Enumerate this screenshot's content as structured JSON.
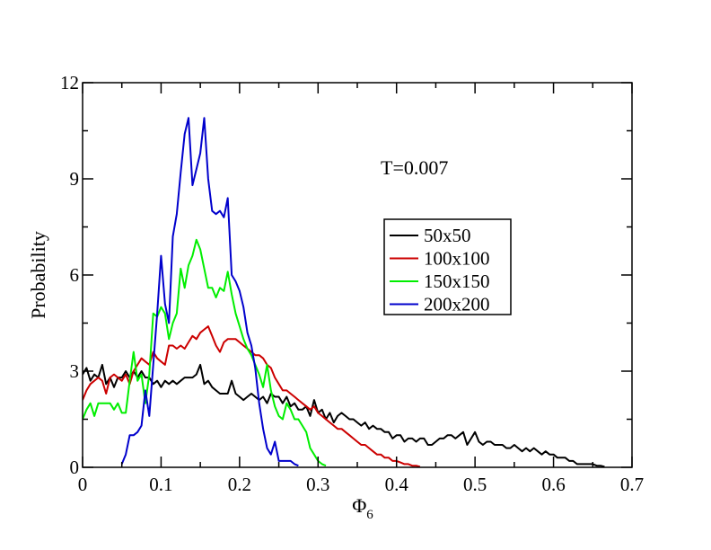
{
  "chart_data": {
    "type": "line",
    "xlabel": "Φ",
    "xlabel_subscript": "6",
    "ylabel": "Probability",
    "annotation": "T=0.007",
    "xlim": [
      0,
      0.7
    ],
    "ylim": [
      0,
      12
    ],
    "x_ticks": [
      0,
      0.1,
      0.2,
      0.3,
      0.4,
      0.5,
      0.6,
      0.7
    ],
    "x_tick_labels": [
      "0",
      "0.1",
      "0.2",
      "0.3",
      "0.4",
      "0.5",
      "0.6",
      "0.7"
    ],
    "y_ticks": [
      0,
      3,
      6,
      9,
      12
    ],
    "y_tick_labels": [
      "0",
      "3",
      "6",
      "9",
      "12"
    ],
    "grid": false,
    "legend_position": "upper-middle-right",
    "series": [
      {
        "name": "50x50",
        "color": "#000000",
        "x": [
          0,
          0.005,
          0.01,
          0.015,
          0.02,
          0.025,
          0.03,
          0.035,
          0.04,
          0.045,
          0.05,
          0.055,
          0.06,
          0.065,
          0.07,
          0.075,
          0.08,
          0.085,
          0.09,
          0.095,
          0.1,
          0.105,
          0.11,
          0.115,
          0.12,
          0.125,
          0.13,
          0.135,
          0.14,
          0.145,
          0.15,
          0.155,
          0.16,
          0.165,
          0.17,
          0.175,
          0.18,
          0.185,
          0.19,
          0.195,
          0.2,
          0.205,
          0.21,
          0.215,
          0.22,
          0.225,
          0.23,
          0.235,
          0.24,
          0.245,
          0.25,
          0.255,
          0.26,
          0.265,
          0.27,
          0.275,
          0.28,
          0.285,
          0.29,
          0.295,
          0.3,
          0.305,
          0.31,
          0.315,
          0.32,
          0.325,
          0.33,
          0.335,
          0.34,
          0.345,
          0.35,
          0.355,
          0.36,
          0.365,
          0.37,
          0.375,
          0.38,
          0.385,
          0.39,
          0.395,
          0.4,
          0.405,
          0.41,
          0.415,
          0.42,
          0.425,
          0.43,
          0.435,
          0.44,
          0.445,
          0.45,
          0.455,
          0.46,
          0.465,
          0.47,
          0.475,
          0.48,
          0.485,
          0.49,
          0.495,
          0.5,
          0.505,
          0.51,
          0.515,
          0.52,
          0.525,
          0.53,
          0.535,
          0.54,
          0.545,
          0.55,
          0.555,
          0.56,
          0.565,
          0.57,
          0.575,
          0.58,
          0.585,
          0.59,
          0.595,
          0.6,
          0.605,
          0.61,
          0.615,
          0.62,
          0.625,
          0.63,
          0.635,
          0.64,
          0.645,
          0.65,
          0.655,
          0.66,
          0.665
        ],
        "values": [
          2.9,
          3.1,
          2.7,
          2.9,
          2.8,
          3.2,
          2.6,
          2.8,
          2.5,
          2.8,
          2.8,
          3.0,
          2.8,
          3.0,
          2.8,
          3.0,
          2.8,
          2.8,
          2.6,
          2.7,
          2.5,
          2.7,
          2.6,
          2.7,
          2.6,
          2.7,
          2.8,
          2.8,
          2.8,
          2.9,
          3.2,
          2.6,
          2.7,
          2.5,
          2.4,
          2.3,
          2.3,
          2.3,
          2.7,
          2.3,
          2.2,
          2.1,
          2.2,
          2.3,
          2.2,
          2.1,
          2.2,
          2.0,
          2.3,
          2.2,
          2.2,
          2.0,
          2.2,
          1.9,
          2.0,
          1.8,
          1.8,
          1.9,
          1.6,
          2.1,
          1.7,
          1.8,
          1.5,
          1.7,
          1.4,
          1.6,
          1.7,
          1.6,
          1.5,
          1.5,
          1.4,
          1.3,
          1.4,
          1.2,
          1.3,
          1.2,
          1.2,
          1.1,
          1.1,
          0.9,
          1.0,
          1.0,
          0.8,
          0.9,
          0.9,
          0.8,
          0.9,
          0.9,
          0.7,
          0.7,
          0.8,
          0.9,
          0.9,
          1.0,
          1.0,
          0.9,
          1.0,
          1.1,
          0.7,
          0.9,
          1.1,
          0.8,
          0.7,
          0.8,
          0.8,
          0.7,
          0.7,
          0.7,
          0.6,
          0.6,
          0.7,
          0.6,
          0.5,
          0.6,
          0.5,
          0.6,
          0.5,
          0.4,
          0.5,
          0.4,
          0.4,
          0.3,
          0.3,
          0.3,
          0.2,
          0.2,
          0.1,
          0.1,
          0.1,
          0.1,
          0.1,
          0.05,
          0.05,
          0.02
        ]
      },
      {
        "name": "100x100",
        "color": "#cc0000",
        "x": [
          0,
          0.005,
          0.01,
          0.015,
          0.02,
          0.025,
          0.03,
          0.035,
          0.04,
          0.045,
          0.05,
          0.055,
          0.06,
          0.065,
          0.07,
          0.075,
          0.08,
          0.085,
          0.09,
          0.095,
          0.1,
          0.105,
          0.11,
          0.115,
          0.12,
          0.125,
          0.13,
          0.135,
          0.14,
          0.145,
          0.15,
          0.155,
          0.16,
          0.165,
          0.17,
          0.175,
          0.18,
          0.185,
          0.19,
          0.195,
          0.2,
          0.205,
          0.21,
          0.215,
          0.22,
          0.225,
          0.23,
          0.235,
          0.24,
          0.245,
          0.25,
          0.255,
          0.26,
          0.265,
          0.27,
          0.275,
          0.28,
          0.285,
          0.29,
          0.295,
          0.3,
          0.305,
          0.31,
          0.315,
          0.32,
          0.325,
          0.33,
          0.335,
          0.34,
          0.345,
          0.35,
          0.355,
          0.36,
          0.365,
          0.37,
          0.375,
          0.38,
          0.385,
          0.39,
          0.395,
          0.4,
          0.405,
          0.41,
          0.415,
          0.42,
          0.425,
          0.43
        ],
        "values": [
          2.1,
          2.4,
          2.6,
          2.7,
          2.8,
          2.7,
          2.3,
          2.8,
          2.9,
          2.8,
          2.7,
          2.9,
          2.6,
          3.0,
          3.2,
          3.4,
          3.3,
          3.2,
          3.6,
          3.4,
          3.3,
          3.2,
          3.8,
          3.8,
          3.7,
          3.8,
          3.7,
          3.9,
          4.1,
          4.0,
          4.2,
          4.3,
          4.4,
          4.1,
          3.8,
          3.6,
          3.9,
          4.0,
          4.0,
          4.0,
          3.9,
          3.8,
          3.7,
          3.6,
          3.5,
          3.5,
          3.4,
          3.2,
          3.1,
          2.8,
          2.6,
          2.4,
          2.4,
          2.3,
          2.2,
          2.1,
          2.0,
          1.9,
          1.8,
          1.9,
          1.7,
          1.6,
          1.5,
          1.4,
          1.3,
          1.2,
          1.2,
          1.1,
          1.0,
          0.9,
          0.8,
          0.7,
          0.7,
          0.6,
          0.5,
          0.4,
          0.4,
          0.3,
          0.3,
          0.2,
          0.2,
          0.15,
          0.1,
          0.1,
          0.05,
          0.05,
          0.02
        ]
      },
      {
        "name": "150x150",
        "color": "#00ee00",
        "x": [
          0,
          0.005,
          0.01,
          0.015,
          0.02,
          0.025,
          0.03,
          0.035,
          0.04,
          0.045,
          0.05,
          0.055,
          0.06,
          0.065,
          0.07,
          0.075,
          0.08,
          0.085,
          0.09,
          0.095,
          0.1,
          0.105,
          0.11,
          0.115,
          0.12,
          0.125,
          0.13,
          0.135,
          0.14,
          0.145,
          0.15,
          0.155,
          0.16,
          0.165,
          0.17,
          0.175,
          0.18,
          0.185,
          0.19,
          0.195,
          0.2,
          0.205,
          0.21,
          0.215,
          0.22,
          0.225,
          0.23,
          0.235,
          0.24,
          0.245,
          0.25,
          0.255,
          0.26,
          0.265,
          0.27,
          0.275,
          0.28,
          0.285,
          0.29,
          0.295,
          0.3,
          0.305,
          0.31
        ],
        "values": [
          1.5,
          1.8,
          2.0,
          1.6,
          2.0,
          2.0,
          2.0,
          2.0,
          1.8,
          2.0,
          1.7,
          1.7,
          2.7,
          3.6,
          2.7,
          2.9,
          2.0,
          2.9,
          4.8,
          4.7,
          5.0,
          4.8,
          4.0,
          4.5,
          4.8,
          6.2,
          5.6,
          6.3,
          6.6,
          7.1,
          6.8,
          6.2,
          5.6,
          5.6,
          5.3,
          5.6,
          5.5,
          6.1,
          5.4,
          4.8,
          4.4,
          4.0,
          3.7,
          3.5,
          3.2,
          2.9,
          2.5,
          3.2,
          2.4,
          1.9,
          1.6,
          1.5,
          2.0,
          1.8,
          1.5,
          1.5,
          1.3,
          1.1,
          0.6,
          0.4,
          0.2,
          0.1,
          0.05
        ]
      },
      {
        "name": "200x200",
        "color": "#0000cc",
        "x": [
          0.05,
          0.055,
          0.06,
          0.065,
          0.07,
          0.075,
          0.08,
          0.085,
          0.09,
          0.095,
          0.1,
          0.105,
          0.11,
          0.115,
          0.12,
          0.125,
          0.13,
          0.135,
          0.14,
          0.145,
          0.15,
          0.155,
          0.16,
          0.165,
          0.17,
          0.175,
          0.18,
          0.185,
          0.19,
          0.195,
          0.2,
          0.205,
          0.21,
          0.215,
          0.22,
          0.225,
          0.23,
          0.235,
          0.24,
          0.245,
          0.25,
          0.255,
          0.26,
          0.265,
          0.27,
          0.275
        ],
        "values": [
          0.1,
          0.4,
          1.0,
          1.0,
          1.1,
          1.3,
          2.4,
          1.6,
          3.2,
          4.8,
          6.6,
          5.1,
          4.5,
          7.2,
          7.9,
          9.2,
          10.4,
          10.9,
          8.8,
          9.3,
          9.8,
          10.9,
          9.0,
          8.0,
          7.9,
          8.0,
          7.8,
          8.4,
          6.0,
          5.8,
          5.5,
          5.0,
          4.2,
          3.8,
          3.1,
          2.0,
          1.2,
          0.6,
          0.4,
          0.8,
          0.2,
          0.2,
          0.2,
          0.2,
          0.1,
          0.05
        ]
      }
    ]
  }
}
